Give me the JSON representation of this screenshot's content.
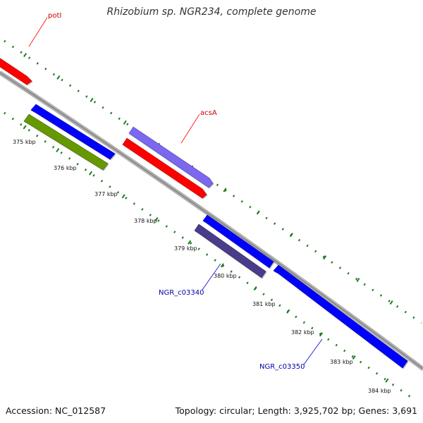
{
  "header": {
    "title": "Rhizobium sp. NGR234, complete genome"
  },
  "footer": {
    "accession": "Accession: NC_012587",
    "summary": "Topology: circular; Length: 3,925,702 bp; Genes: 3,691"
  },
  "ticks": [
    {
      "label": "375 kbp"
    },
    {
      "label": "376 kbp"
    },
    {
      "label": "377 kbp"
    },
    {
      "label": "378 kbp"
    },
    {
      "label": "379 kbp"
    },
    {
      "label": "380 kbp"
    },
    {
      "label": "381 kbp"
    },
    {
      "label": "382 kbp"
    },
    {
      "label": "383 kbp"
    },
    {
      "label": "384 kbp"
    }
  ],
  "genes": [
    {
      "id": "potI",
      "label": "potI",
      "color": "#ff0000",
      "strand": "forward",
      "labeled": true
    },
    {
      "id": "gene-blue-1",
      "label": "",
      "color": "#0000ff",
      "strand": "reverse",
      "labeled": false
    },
    {
      "id": "gene-green-1",
      "label": "",
      "color": "#669900",
      "strand": "reverse",
      "labeled": false
    },
    {
      "id": "gene-lavender-1",
      "label": "",
      "color": "#7b68ee",
      "strand": "forward",
      "labeled": false
    },
    {
      "id": "acsA",
      "label": "acsA",
      "color": "#ff0000",
      "strand": "forward",
      "labeled": true
    },
    {
      "id": "gene-blue-2",
      "label": "",
      "color": "#0000ff",
      "strand": "reverse",
      "labeled": false
    },
    {
      "id": "NGR_c03340",
      "label": "NGR_c03340",
      "color": "#483d8b",
      "strand": "reverse",
      "labeled": true
    },
    {
      "id": "NGR_c03350",
      "label": "NGR_c03350",
      "color": "#0000ff",
      "strand": "reverse",
      "labeled": true
    }
  ],
  "colors": {
    "backbone": "#8c8c8c",
    "tick": "#1e7a1e",
    "feature_label_red": "#cc0000",
    "feature_label_blue": "#0000aa"
  }
}
